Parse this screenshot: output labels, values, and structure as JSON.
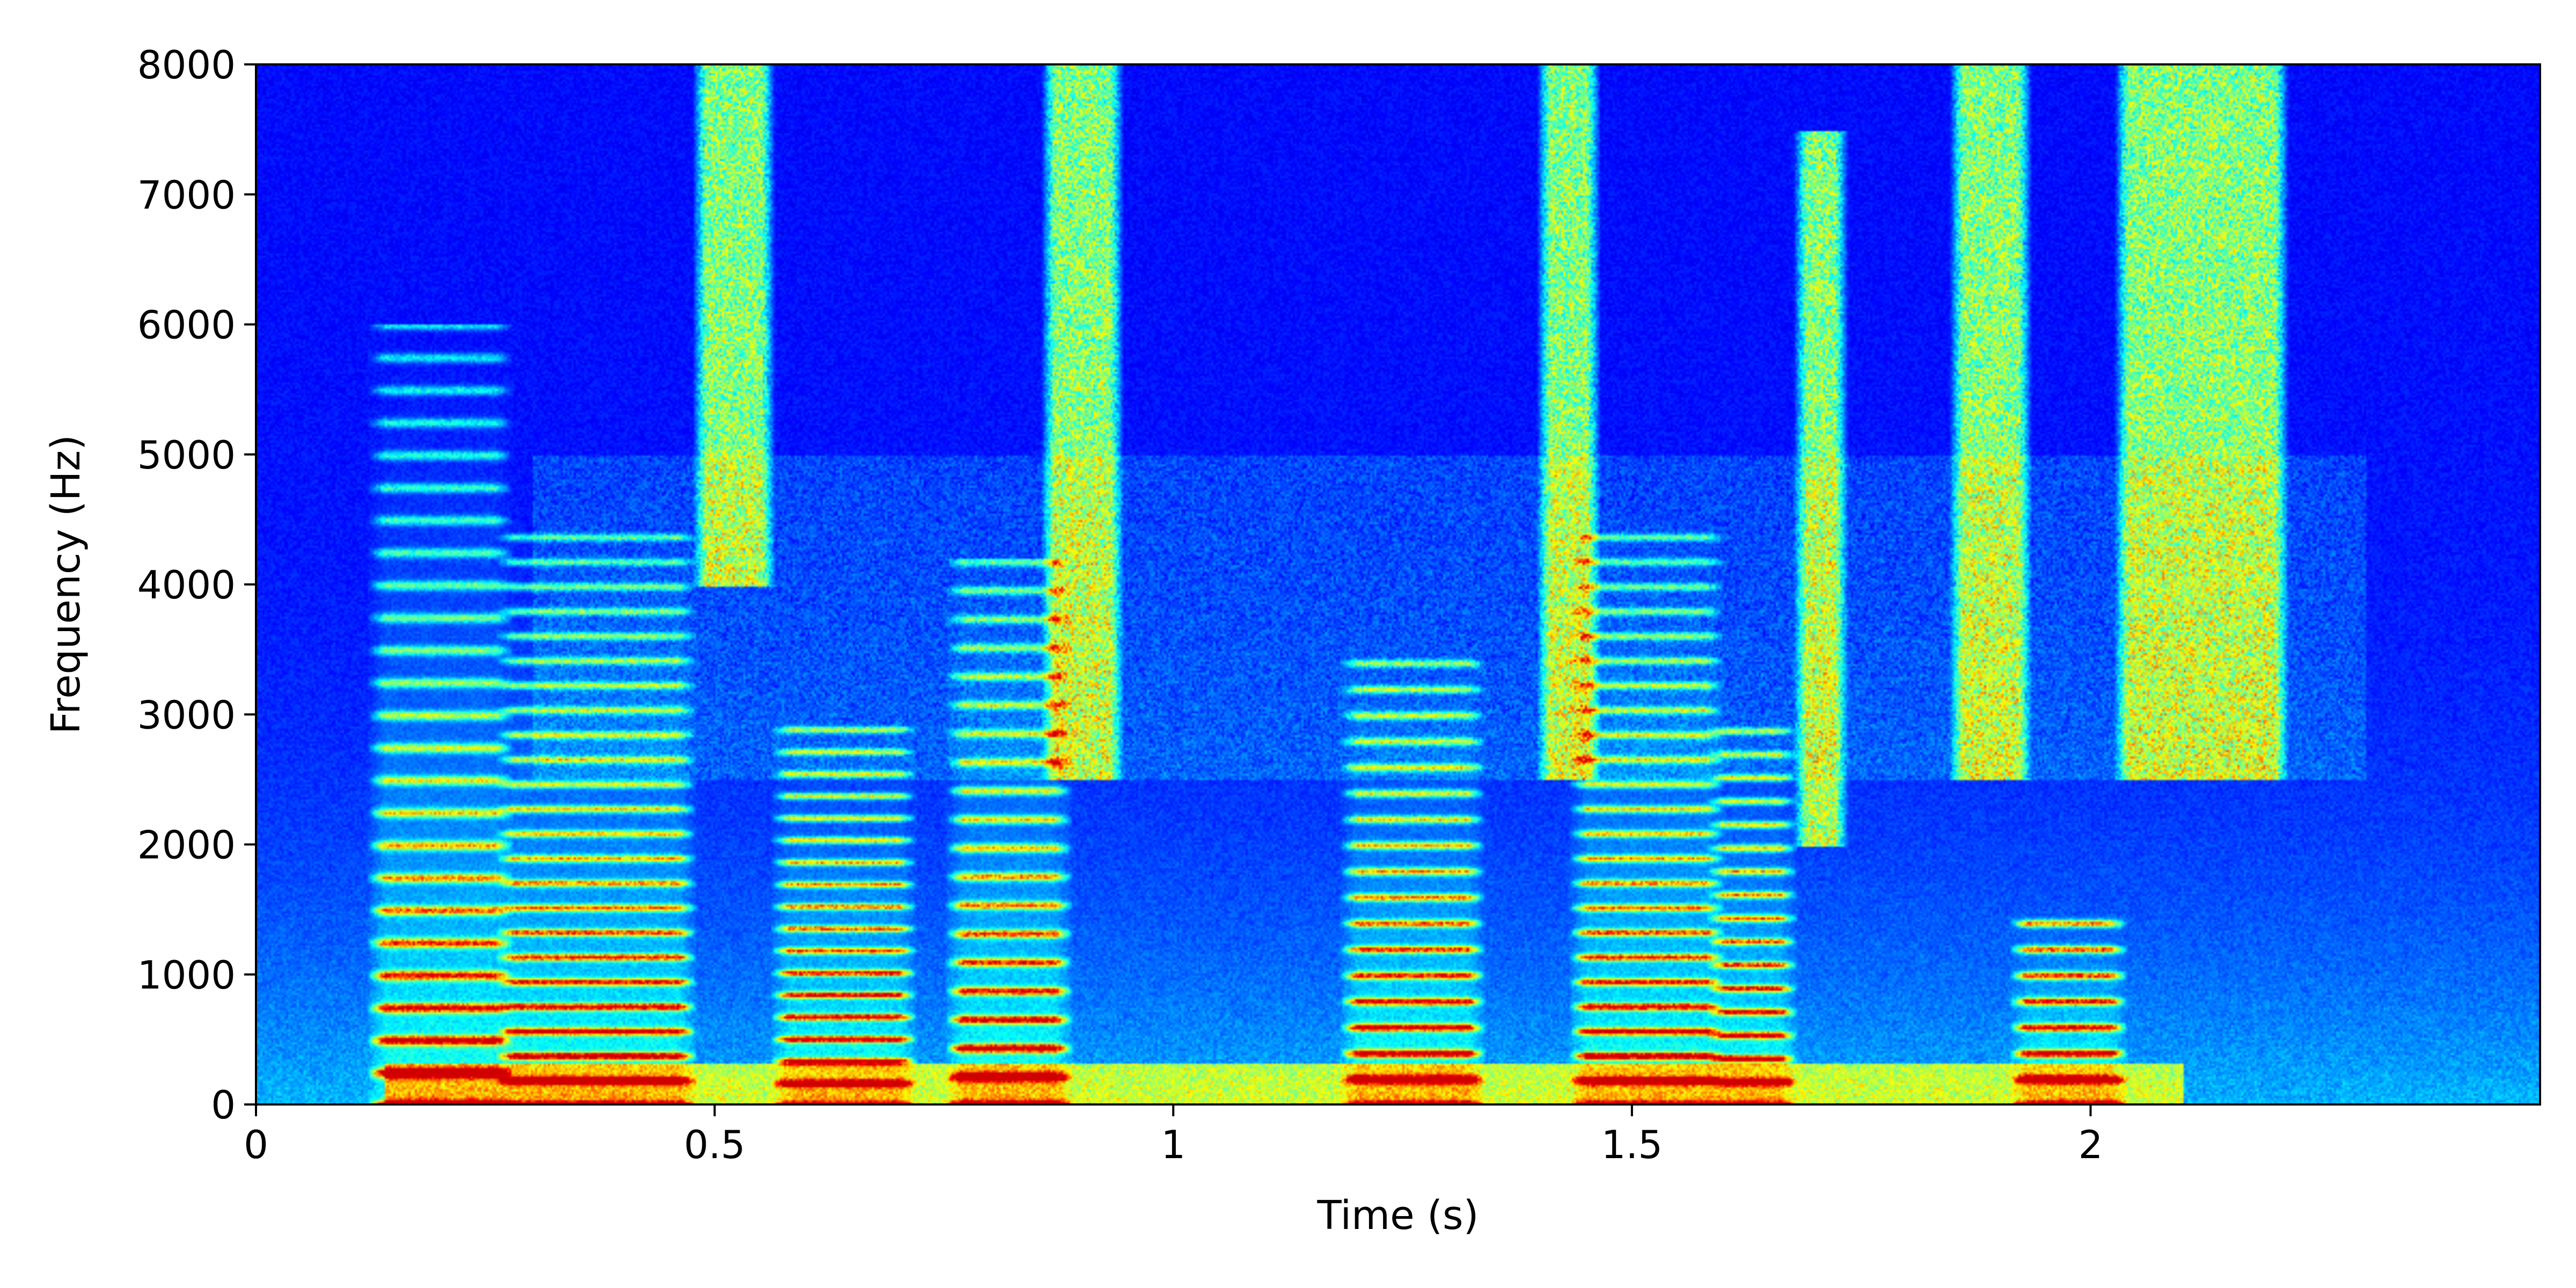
{
  "chart_data": {
    "type": "heatmap",
    "title": "",
    "xlabel": "Time (s)",
    "ylabel": "Frequency (Hz)",
    "xlim": [
      0,
      2.49
    ],
    "ylim": [
      0,
      8000
    ],
    "xticks": [
      0,
      0.5,
      1,
      1.5,
      2
    ],
    "xtick_labels": [
      "0",
      "0.5",
      "1",
      "1.5",
      "2"
    ],
    "yticks": [
      0,
      1000,
      2000,
      3000,
      4000,
      5000,
      6000,
      7000,
      8000
    ],
    "ytick_labels": [
      "0",
      "1000",
      "2000",
      "3000",
      "4000",
      "5000",
      "6000",
      "7000",
      "8000"
    ],
    "colormap": "jet",
    "grid": false,
    "legend": "none",
    "voiced_segments": [
      {
        "t_start": 0.14,
        "t_end": 0.26,
        "f0_hz": 250,
        "max_hz": 6000
      },
      {
        "t_start": 0.28,
        "t_end": 0.46,
        "f0_hz": 190,
        "max_hz": 4500
      },
      {
        "t_start": 0.58,
        "t_end": 0.7,
        "f0_hz": 170,
        "max_hz": 3000
      },
      {
        "t_start": 0.77,
        "t_end": 0.87,
        "f0_hz": 220,
        "max_hz": 4200
      },
      {
        "t_start": 1.2,
        "t_end": 1.32,
        "f0_hz": 200,
        "max_hz": 3500
      },
      {
        "t_start": 1.45,
        "t_end": 1.58,
        "f0_hz": 190,
        "max_hz": 4500
      },
      {
        "t_start": 1.6,
        "t_end": 1.66,
        "f0_hz": 180,
        "max_hz": 3000
      },
      {
        "t_start": 1.93,
        "t_end": 2.02,
        "f0_hz": 200,
        "max_hz": 1500
      }
    ],
    "fricative_segments": [
      {
        "t_start": 0.49,
        "t_end": 0.55,
        "f_low_hz": 4000,
        "f_high_hz": 8000
      },
      {
        "t_start": 0.87,
        "t_end": 0.93,
        "f_low_hz": 2500,
        "f_high_hz": 8000
      },
      {
        "t_start": 1.41,
        "t_end": 1.45,
        "f_low_hz": 2500,
        "f_high_hz": 8000
      },
      {
        "t_start": 1.69,
        "t_end": 1.72,
        "f_low_hz": 2000,
        "f_high_hz": 7500
      },
      {
        "t_start": 1.86,
        "t_end": 1.92,
        "f_low_hz": 2500,
        "f_high_hz": 8000
      },
      {
        "t_start": 2.04,
        "t_end": 2.2,
        "f_low_hz": 2500,
        "f_high_hz": 8000
      }
    ]
  }
}
